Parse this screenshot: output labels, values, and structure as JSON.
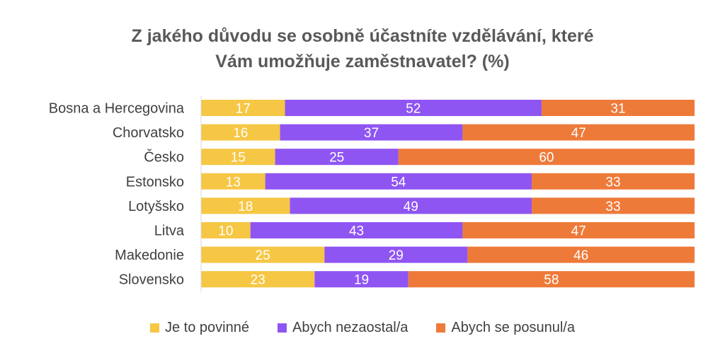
{
  "chart_data": {
    "type": "bar",
    "orientation": "horizontal",
    "stacked": true,
    "title_lines": [
      "Z jakého důvodu se osobně účastníte vzdělávání, které",
      "Vám umožňuje zaměstnavatel?  (%)"
    ],
    "categories": [
      "Bosna a Hercegovina",
      "Chorvatsko",
      "Česko",
      "Estonsko",
      "Lotyšsko",
      "Litva",
      "Makedonie",
      "Slovensko"
    ],
    "series": [
      {
        "name": "Je to povinné",
        "color": "#F6C744",
        "values": [
          17,
          16,
          15,
          13,
          18,
          10,
          25,
          23
        ]
      },
      {
        "name": "Abych nezaostal/a",
        "color": "#8F55F2",
        "values": [
          52,
          37,
          25,
          54,
          49,
          43,
          29,
          19
        ]
      },
      {
        "name": "Abych se posunul/a",
        "color": "#EE7A3A",
        "values": [
          31,
          47,
          60,
          33,
          33,
          47,
          46,
          58
        ]
      }
    ],
    "xlim": [
      0,
      100
    ],
    "grid": false,
    "legend_position": "bottom",
    "data_labels": true
  }
}
